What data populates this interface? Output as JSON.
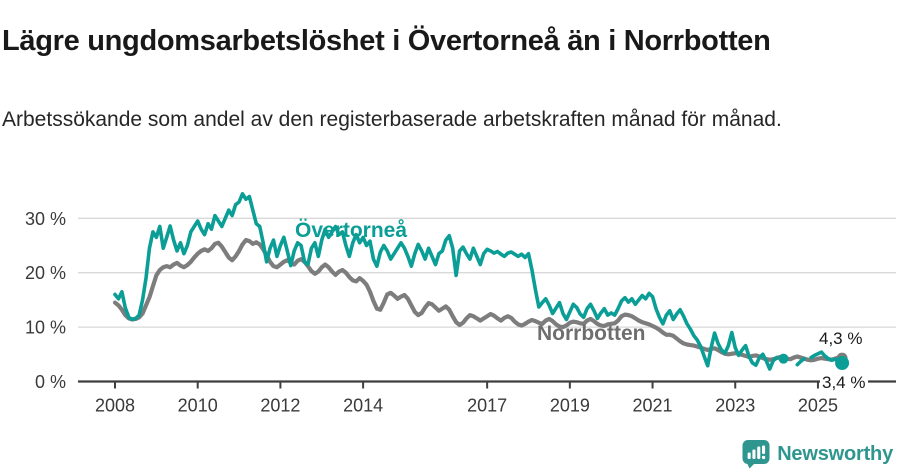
{
  "header": {
    "title": "Lägre ungdomsarbetslöshet i Övertorneå än i Norrbotten",
    "subtitle": "Arbetssökande som andel av den registerbaserade arbetskraften månad för månad."
  },
  "footer": {
    "brand": "Newsworthy",
    "logo_icon": "newsworthy-bars-speech-bubble"
  },
  "colors": {
    "overtornea": "#0b9e96",
    "norrbotten": "#7d7d7d",
    "grid": "#d9d9d9",
    "axis": "#3f3f3f",
    "logo_teal": "#2f968f"
  },
  "chart_data": {
    "type": "line",
    "title": "Lägre ungdomsarbetslöshet i Övertorneå än i Norrbotten",
    "subtitle": "Arbetssökande som andel av den registerbaserade arbetskraften månad för månad.",
    "unit": "%",
    "frequency": "monthly",
    "x_start": "2008-01",
    "x_end": "2025-08",
    "ylim": [
      0,
      35
    ],
    "grid": "horizontal",
    "y_ticks": [
      {
        "value": 0,
        "label": "0 %"
      },
      {
        "value": 10,
        "label": "10 %"
      },
      {
        "value": 20,
        "label": "20 %"
      },
      {
        "value": 30,
        "label": "30 %"
      }
    ],
    "x_ticks": [
      {
        "year": 2008,
        "label": "2008"
      },
      {
        "year": 2010,
        "label": "2010"
      },
      {
        "year": 2012,
        "label": "2012"
      },
      {
        "year": 2014,
        "label": "2014"
      },
      {
        "year": 2017,
        "label": "2017"
      },
      {
        "year": 2019,
        "label": "2019"
      },
      {
        "year": 2021,
        "label": "2021"
      },
      {
        "year": 2023,
        "label": "2023"
      },
      {
        "year": 2025,
        "label": "2025"
      }
    ],
    "series": [
      {
        "name": "Övertorneå",
        "color": "#0b9e96",
        "line_width": 3.6,
        "end_label": "3,4 %",
        "end_value": 3.4,
        "end_dot": true,
        "style_breaks": {
          "solid_until_index": 192,
          "dot_index": 194,
          "dash_from_index": 198,
          "dash_to_index": 200,
          "resume_index": 202
        },
        "values": [
          16.0,
          15.2,
          16.5,
          13.5,
          11.8,
          11.4,
          11.6,
          12.2,
          15.0,
          19.0,
          24.5,
          27.5,
          26.5,
          28.5,
          24.5,
          26.5,
          28.6,
          26.0,
          24.0,
          25.5,
          23.5,
          25.0,
          27.5,
          28.5,
          29.5,
          28.0,
          27.0,
          29.0,
          28.0,
          30.5,
          29.5,
          28.5,
          30.0,
          31.5,
          30.5,
          32.5,
          33.0,
          34.5,
          33.5,
          34.0,
          31.5,
          29.0,
          28.5,
          25.5,
          22.0,
          24.5,
          26.0,
          23.0,
          25.0,
          26.5,
          24.0,
          21.3,
          24.0,
          25.5,
          25.0,
          22.0,
          21.5,
          24.5,
          25.5,
          23.0,
          26.0,
          28.0,
          26.5,
          27.5,
          28.5,
          27.0,
          27.5,
          25.0,
          23.0,
          25.5,
          27.0,
          25.5,
          26.5,
          25.0,
          25.8,
          22.5,
          21.2,
          23.8,
          25.0,
          24.0,
          22.5,
          23.5,
          24.5,
          25.5,
          24.5,
          23.0,
          21.2,
          23.5,
          25.2,
          24.0,
          22.5,
          24.5,
          23.0,
          21.5,
          23.5,
          24.0,
          26.0,
          26.8,
          24.5,
          19.5,
          24.0,
          24.7,
          23.5,
          22.5,
          24.5,
          23.0,
          21.5,
          23.5,
          24.3,
          24.0,
          23.6,
          23.9,
          23.4,
          23.0,
          23.6,
          23.8,
          23.4,
          23.0,
          23.4,
          22.8,
          23.5,
          20.5,
          16.9,
          13.7,
          14.5,
          15.2,
          14.0,
          12.5,
          13.5,
          14.5,
          12.5,
          11.4,
          12.8,
          14.2,
          13.6,
          12.4,
          11.8,
          13.4,
          14.2,
          13.0,
          11.6,
          12.6,
          13.4,
          12.2,
          12.6,
          12.2,
          13.4,
          14.8,
          15.4,
          14.6,
          15.2,
          14.2,
          15.0,
          15.8,
          15.2,
          16.2,
          15.6,
          13.4,
          11.8,
          10.6,
          12.2,
          13.0,
          11.4,
          12.4,
          13.2,
          12.0,
          10.6,
          9.6,
          8.4,
          7.6,
          6.4,
          4.6,
          2.9,
          6.2,
          8.9,
          7.0,
          5.8,
          5.2,
          6.6,
          9.0,
          6.2,
          4.8,
          5.8,
          6.6,
          4.6,
          3.4,
          3.0,
          4.4,
          5.0,
          3.8,
          2.3,
          3.8,
          4.4,
          3.8,
          4.2,
          4.1,
          4.4,
          3.5,
          3.1,
          3.7,
          4.2,
          3.8,
          4.4,
          4.8,
          5.1,
          5.4,
          4.7,
          4.2,
          3.9,
          4.1,
          3.7,
          3.4
        ]
      },
      {
        "name": "Norrbotten",
        "color": "#7d7d7d",
        "line_width": 4.2,
        "end_label": "4,3 %",
        "end_value": 4.3,
        "end_dot": true,
        "values": [
          14.5,
          14.0,
          13.2,
          12.2,
          11.6,
          11.4,
          11.5,
          11.8,
          12.5,
          14.0,
          15.5,
          17.5,
          19.5,
          20.5,
          21.0,
          21.2,
          21.0,
          21.5,
          21.8,
          21.3,
          21.0,
          21.4,
          22.0,
          22.8,
          23.5,
          24.0,
          24.3,
          24.0,
          24.5,
          25.3,
          25.5,
          24.8,
          23.8,
          22.8,
          22.3,
          23.0,
          24.0,
          25.2,
          26.0,
          25.8,
          25.3,
          25.6,
          25.2,
          24.3,
          23.2,
          22.0,
          21.2,
          21.0,
          21.5,
          22.0,
          22.3,
          21.8,
          21.5,
          22.2,
          22.5,
          22.0,
          21.2,
          20.3,
          19.8,
          20.2,
          21.0,
          21.5,
          21.0,
          20.2,
          19.6,
          20.2,
          20.5,
          20.0,
          19.2,
          18.6,
          18.4,
          19.0,
          18.5,
          17.8,
          16.5,
          14.8,
          13.4,
          13.2,
          14.5,
          16.0,
          16.3,
          15.8,
          15.2,
          15.6,
          15.9,
          15.2,
          14.0,
          12.8,
          12.2,
          12.6,
          13.6,
          14.4,
          14.2,
          13.6,
          13.0,
          13.4,
          13.8,
          13.2,
          12.0,
          10.9,
          10.4,
          10.8,
          11.6,
          12.2,
          12.0,
          11.6,
          11.2,
          11.6,
          12.0,
          12.4,
          12.1,
          11.6,
          11.2,
          11.7,
          12.0,
          11.7,
          11.0,
          10.5,
          10.3,
          10.6,
          11.0,
          11.3,
          11.1,
          10.8,
          10.6,
          11.2,
          11.5,
          11.1,
          10.5,
          10.1,
          10.0,
          10.3,
          10.8,
          11.0,
          10.9,
          10.7,
          10.6,
          11.2,
          11.5,
          11.1,
          10.6,
          10.3,
          10.2,
          10.5,
          10.6,
          10.7,
          11.2,
          12.0,
          12.3,
          12.2,
          12.0,
          11.6,
          11.2,
          10.9,
          10.7,
          10.5,
          10.2,
          9.9,
          9.5,
          9.0,
          8.6,
          8.6,
          8.4,
          7.9,
          7.4,
          7.0,
          6.8,
          6.7,
          6.6,
          6.4,
          6.2,
          6.0,
          5.8,
          6.0,
          6.1,
          5.8,
          5.4,
          5.1,
          5.0,
          5.1,
          5.2,
          5.1,
          4.9,
          4.7,
          4.5,
          4.7,
          4.8,
          4.6,
          4.3,
          4.1,
          4.0,
          4.1,
          4.3,
          4.5,
          4.4,
          4.2,
          4.1,
          4.4,
          4.6,
          4.4,
          4.2,
          4.0,
          3.9,
          4.0,
          4.2,
          4.3,
          4.2,
          4.1,
          4.0,
          4.2,
          4.4,
          4.3
        ]
      }
    ],
    "legend_position": "inline-labels"
  }
}
